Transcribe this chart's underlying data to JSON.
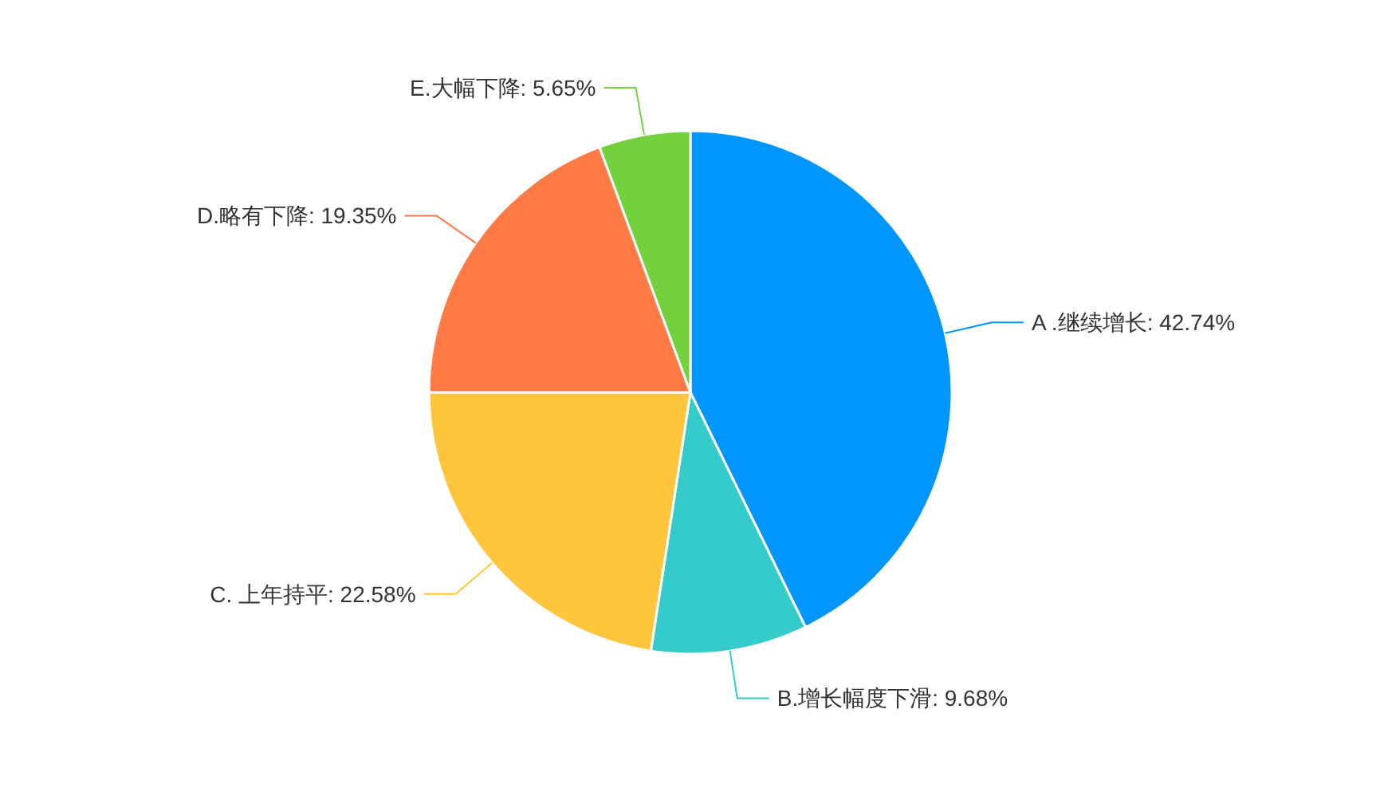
{
  "chart_data": {
    "type": "pie",
    "categories": [
      "A .继续增长",
      "B.增长幅度下滑",
      "C. 上年持平",
      "D.略有下降",
      "E.大幅下降"
    ],
    "values": [
      42.74,
      9.68,
      22.58,
      19.35,
      5.65
    ],
    "value_labels": [
      "42.74%",
      "9.68%",
      "22.58%",
      "19.35%",
      "5.65%"
    ],
    "colors": [
      "#0095ff",
      "#36cbcb",
      "#ffc53d",
      "#ff7a45",
      "#73d13d"
    ]
  }
}
